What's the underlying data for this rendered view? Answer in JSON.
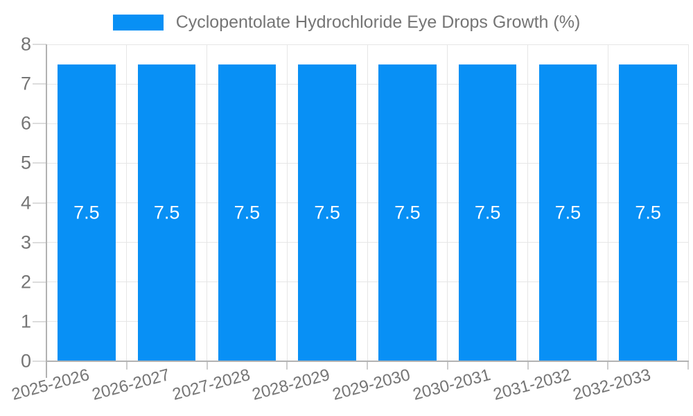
{
  "legend": {
    "label": "Cyclopentolate Hydrochloride Eye Drops Growth (%)"
  },
  "chart_data": {
    "type": "bar",
    "title": "",
    "xlabel": "",
    "ylabel": "",
    "categories": [
      "2025-2026",
      "2026-2027",
      "2027-2028",
      "2028-2029",
      "2029-2030",
      "2030-2031",
      "2031-2032",
      "2032-2033"
    ],
    "series": [
      {
        "name": "Cyclopentolate Hydrochloride Eye Drops Growth (%)",
        "values": [
          7.5,
          7.5,
          7.5,
          7.5,
          7.5,
          7.5,
          7.5,
          7.5
        ]
      }
    ],
    "value_labels": [
      "7.5",
      "7.5",
      "7.5",
      "7.5",
      "7.5",
      "7.5",
      "7.5",
      "7.5"
    ],
    "ylim": [
      0,
      8
    ],
    "yticks": [
      0,
      1,
      2,
      3,
      4,
      5,
      6,
      7,
      8
    ],
    "grid": "on",
    "legend_position": "top",
    "colors": {
      "bar": "#0890f5",
      "value_label": "#ffffff",
      "axis_text": "#757575",
      "grid_line": "#e6e6e6",
      "axis_line": "#b2b2b2",
      "tick_mark": "#cccccc"
    }
  }
}
